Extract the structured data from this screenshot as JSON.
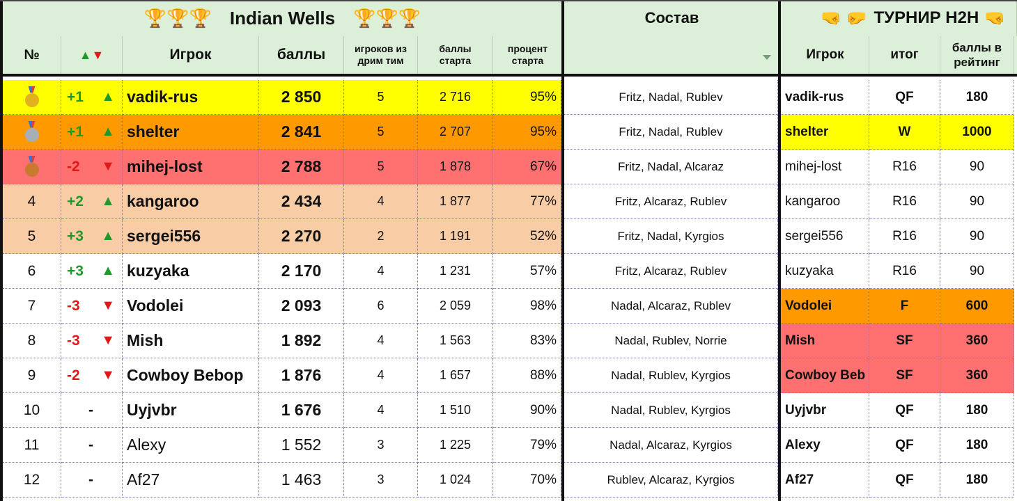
{
  "title": "Indian Wells",
  "sostav_title": "Состав",
  "h2h_title": "ТУРНИР H2H",
  "colors": {
    "header_bg": "#dcefd8",
    "yellow": "#ffff00",
    "orange": "#ff9900",
    "red": "#ff7070",
    "peach": "#f8cda6",
    "up": "#1f9a2a",
    "down": "#e01818"
  },
  "headers": {
    "num": "№",
    "arrows_up": "▲",
    "arrows_down": "▼",
    "player": "Игрок",
    "points": "баллы",
    "dream": "игроков из дрим тим",
    "start_points": "баллы старта",
    "start_pct": "процент старта",
    "h2h_player": "Игрок",
    "h2h_result": "итог",
    "h2h_rating": "баллы в рейтинг"
  },
  "rows": [
    {
      "num": "",
      "medal": "gold",
      "change": "+1",
      "dir": "up",
      "name": "vadik-rus",
      "points": "2 850",
      "dream": "5",
      "start": "2 716",
      "pct": "95%",
      "sostav": "Fritz, Nadal, Rublev",
      "h2h_name": "vadik-rus",
      "h2h_res": "QF",
      "h2h_pts": "180",
      "bg": "yellow",
      "h2h_bg": "",
      "bold": true,
      "h2h_bold": true
    },
    {
      "num": "",
      "medal": "silver",
      "change": "+1",
      "dir": "up",
      "name": "shelter",
      "points": "2 841",
      "dream": "5",
      "start": "2 707",
      "pct": "95%",
      "sostav": "Fritz, Nadal, Rublev",
      "h2h_name": "shelter",
      "h2h_res": "W",
      "h2h_pts": "1000",
      "bg": "orange",
      "h2h_bg": "yellow",
      "bold": true,
      "h2h_bold": true
    },
    {
      "num": "",
      "medal": "bronze",
      "change": "-2",
      "dir": "down",
      "name": "mihej-lost",
      "points": "2 788",
      "dream": "5",
      "start": "1 878",
      "pct": "67%",
      "sostav": "Fritz, Nadal, Alcaraz",
      "h2h_name": "mihej-lost",
      "h2h_res": "R16",
      "h2h_pts": "90",
      "bg": "red",
      "h2h_bg": "",
      "bold": true,
      "h2h_bold": false
    },
    {
      "num": "4",
      "medal": "",
      "change": "+2",
      "dir": "up",
      "name": "kangaroo",
      "points": "2 434",
      "dream": "4",
      "start": "1 877",
      "pct": "77%",
      "sostav": "Fritz, Alcaraz, Rublev",
      "h2h_name": "kangaroo",
      "h2h_res": "R16",
      "h2h_pts": "90",
      "bg": "peach",
      "h2h_bg": "",
      "bold": true,
      "h2h_bold": false
    },
    {
      "num": "5",
      "medal": "",
      "change": "+3",
      "dir": "up",
      "name": "sergei556",
      "points": "2 270",
      "dream": "2",
      "start": "1 191",
      "pct": "52%",
      "sostav": "Fritz, Nadal, Kyrgios",
      "h2h_name": "sergei556",
      "h2h_res": "R16",
      "h2h_pts": "90",
      "bg": "peach",
      "h2h_bg": "",
      "bold": true,
      "h2h_bold": false
    },
    {
      "num": "6",
      "medal": "",
      "change": "+3",
      "dir": "up",
      "name": "kuzyaka",
      "points": "2 170",
      "dream": "4",
      "start": "1 231",
      "pct": "57%",
      "sostav": "Fritz, Alcaraz, Rublev",
      "h2h_name": "kuzyaka",
      "h2h_res": "R16",
      "h2h_pts": "90",
      "bg": "",
      "h2h_bg": "",
      "bold": true,
      "h2h_bold": false
    },
    {
      "num": "7",
      "medal": "",
      "change": "-3",
      "dir": "down",
      "name": "Vodolei",
      "points": "2 093",
      "dream": "6",
      "start": "2 059",
      "pct": "98%",
      "sostav": "Nadal, Alcaraz, Rublev",
      "h2h_name": "Vodolei",
      "h2h_res": "F",
      "h2h_pts": "600",
      "bg": "",
      "h2h_bg": "orange",
      "bold": true,
      "h2h_bold": true
    },
    {
      "num": "8",
      "medal": "",
      "change": "-3",
      "dir": "down",
      "name": "Mish",
      "points": "1 892",
      "dream": "4",
      "start": "1 563",
      "pct": "83%",
      "sostav": "Nadal, Rublev, Norrie",
      "h2h_name": "Mish",
      "h2h_res": "SF",
      "h2h_pts": "360",
      "bg": "",
      "h2h_bg": "red",
      "bold": true,
      "h2h_bold": true
    },
    {
      "num": "9",
      "medal": "",
      "change": "-2",
      "dir": "down",
      "name": "Cowboy Bebop",
      "points": "1 876",
      "dream": "4",
      "start": "1 657",
      "pct": "88%",
      "sostav": "Nadal, Rublev, Kyrgios",
      "h2h_name": "Cowboy Beb",
      "h2h_res": "SF",
      "h2h_pts": "360",
      "bg": "",
      "h2h_bg": "red",
      "bold": true,
      "h2h_bold": true
    },
    {
      "num": "10",
      "medal": "",
      "change": "-",
      "dir": "",
      "name": "Uyjvbr",
      "points": "1 676",
      "dream": "4",
      "start": "1 510",
      "pct": "90%",
      "sostav": "Nadal, Rublev, Kyrgios",
      "h2h_name": "Uyjvbr",
      "h2h_res": "QF",
      "h2h_pts": "180",
      "bg": "",
      "h2h_bg": "",
      "bold": true,
      "h2h_bold": true
    },
    {
      "num": "11",
      "medal": "",
      "change": "-",
      "dir": "",
      "name": "Alexy",
      "points": "1 552",
      "dream": "3",
      "start": "1 225",
      "pct": "79%",
      "sostav": "Nadal, Alcaraz, Kyrgios",
      "h2h_name": "Alexy",
      "h2h_res": "QF",
      "h2h_pts": "180",
      "bg": "",
      "h2h_bg": "",
      "bold": false,
      "h2h_bold": true
    },
    {
      "num": "12",
      "medal": "",
      "change": "-",
      "dir": "",
      "name": "Af27",
      "points": "1 463",
      "dream": "3",
      "start": "1 024",
      "pct": "70%",
      "sostav": "Rublev, Alcaraz, Kyrgios",
      "h2h_name": "Af27",
      "h2h_res": "QF",
      "h2h_pts": "180",
      "bg": "",
      "h2h_bg": "",
      "bold": false,
      "h2h_bold": true
    }
  ]
}
